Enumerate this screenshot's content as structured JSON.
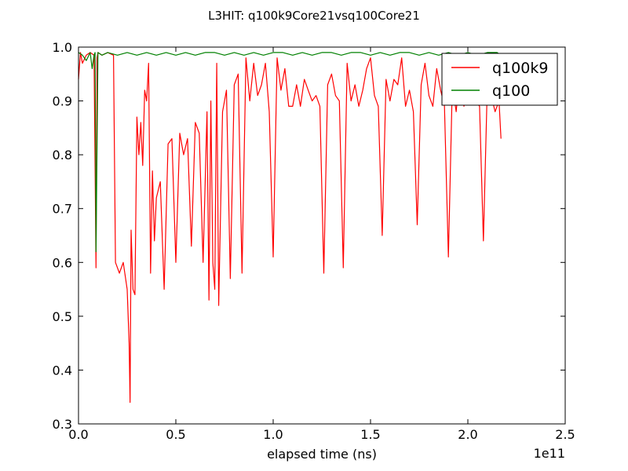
{
  "chart_data": {
    "type": "line",
    "title": "L3HIT: q100k9Core21vsq100Core21",
    "xlabel": "elapsed time (ns)",
    "ylabel": "",
    "x_offset_text": "1e11",
    "xlim": [
      0,
      2.5
    ],
    "ylim": [
      0.3,
      1.0
    ],
    "x_ticks": [
      "0.0",
      "0.5",
      "1.0",
      "1.5",
      "2.0",
      "2.5"
    ],
    "y_ticks": [
      "0.3",
      "0.4",
      "0.5",
      "0.6",
      "0.7",
      "0.8",
      "0.9",
      "1.0"
    ],
    "grid": false,
    "legend_position": "top-right",
    "series": [
      {
        "name": "q100k9",
        "color": "#ff0000",
        "x": [
          0.0,
          0.01,
          0.02,
          0.04,
          0.06,
          0.08,
          0.09,
          0.095,
          0.1,
          0.12,
          0.15,
          0.18,
          0.19,
          0.2,
          0.21,
          0.23,
          0.25,
          0.26,
          0.265,
          0.27,
          0.28,
          0.29,
          0.3,
          0.31,
          0.32,
          0.33,
          0.34,
          0.35,
          0.36,
          0.37,
          0.38,
          0.39,
          0.4,
          0.42,
          0.44,
          0.46,
          0.48,
          0.5,
          0.52,
          0.54,
          0.56,
          0.58,
          0.6,
          0.62,
          0.64,
          0.66,
          0.67,
          0.68,
          0.69,
          0.7,
          0.71,
          0.72,
          0.74,
          0.76,
          0.78,
          0.8,
          0.82,
          0.84,
          0.86,
          0.88,
          0.9,
          0.92,
          0.94,
          0.96,
          0.98,
          1.0,
          1.02,
          1.04,
          1.06,
          1.08,
          1.1,
          1.12,
          1.14,
          1.16,
          1.18,
          1.2,
          1.22,
          1.24,
          1.26,
          1.28,
          1.3,
          1.32,
          1.34,
          1.36,
          1.38,
          1.4,
          1.42,
          1.44,
          1.46,
          1.48,
          1.5,
          1.52,
          1.54,
          1.56,
          1.58,
          1.6,
          1.62,
          1.64,
          1.66,
          1.68,
          1.7,
          1.72,
          1.74,
          1.76,
          1.78,
          1.8,
          1.82,
          1.84,
          1.86,
          1.88,
          1.9,
          1.92,
          1.94,
          1.96,
          1.98,
          2.0,
          2.02,
          2.04,
          2.06,
          2.08,
          2.1,
          2.12,
          2.14,
          2.16,
          2.17
        ],
        "values": [
          0.94,
          0.99,
          0.97,
          0.985,
          0.99,
          0.985,
          0.59,
          0.98,
          0.99,
          0.985,
          0.99,
          0.985,
          0.6,
          0.59,
          0.58,
          0.6,
          0.55,
          0.45,
          0.34,
          0.66,
          0.55,
          0.54,
          0.87,
          0.8,
          0.86,
          0.78,
          0.92,
          0.9,
          0.97,
          0.58,
          0.77,
          0.64,
          0.72,
          0.75,
          0.55,
          0.82,
          0.83,
          0.6,
          0.84,
          0.8,
          0.83,
          0.63,
          0.86,
          0.84,
          0.6,
          0.88,
          0.53,
          0.9,
          0.6,
          0.55,
          0.97,
          0.52,
          0.88,
          0.92,
          0.57,
          0.93,
          0.95,
          0.58,
          0.98,
          0.9,
          0.97,
          0.91,
          0.93,
          0.97,
          0.88,
          0.61,
          0.98,
          0.92,
          0.96,
          0.89,
          0.89,
          0.93,
          0.89,
          0.94,
          0.92,
          0.9,
          0.91,
          0.89,
          0.58,
          0.93,
          0.95,
          0.91,
          0.9,
          0.59,
          0.97,
          0.9,
          0.93,
          0.89,
          0.92,
          0.96,
          0.98,
          0.91,
          0.89,
          0.65,
          0.94,
          0.9,
          0.94,
          0.93,
          0.98,
          0.89,
          0.92,
          0.88,
          0.67,
          0.93,
          0.97,
          0.91,
          0.89,
          0.96,
          0.92,
          0.89,
          0.61,
          0.93,
          0.88,
          0.96,
          0.89,
          0.92,
          0.91,
          0.9,
          0.89,
          0.64,
          0.93,
          0.91,
          0.88,
          0.9,
          0.83
        ]
      },
      {
        "name": "q100",
        "color": "#008000",
        "x": [
          0.0,
          0.02,
          0.04,
          0.06,
          0.07,
          0.08,
          0.085,
          0.09,
          0.1,
          0.12,
          0.15,
          0.2,
          0.25,
          0.3,
          0.35,
          0.4,
          0.45,
          0.5,
          0.55,
          0.6,
          0.65,
          0.7,
          0.75,
          0.8,
          0.85,
          0.9,
          0.95,
          1.0,
          1.05,
          1.1,
          1.15,
          1.2,
          1.25,
          1.3,
          1.35,
          1.4,
          1.45,
          1.5,
          1.55,
          1.6,
          1.65,
          1.7,
          1.75,
          1.8,
          1.85,
          1.9,
          1.95,
          2.0,
          2.05,
          2.1,
          2.15,
          2.17
        ],
        "values": [
          0.99,
          0.985,
          0.975,
          0.99,
          0.96,
          0.985,
          0.99,
          0.62,
          0.99,
          0.985,
          0.99,
          0.985,
          0.99,
          0.985,
          0.99,
          0.985,
          0.99,
          0.985,
          0.99,
          0.985,
          0.99,
          0.99,
          0.985,
          0.99,
          0.985,
          0.99,
          0.985,
          0.99,
          0.99,
          0.985,
          0.99,
          0.985,
          0.99,
          0.99,
          0.985,
          0.99,
          0.99,
          0.985,
          0.99,
          0.985,
          0.99,
          0.99,
          0.985,
          0.99,
          0.985,
          0.99,
          0.985,
          0.99,
          0.985,
          0.99,
          0.99,
          0.985
        ]
      }
    ]
  }
}
